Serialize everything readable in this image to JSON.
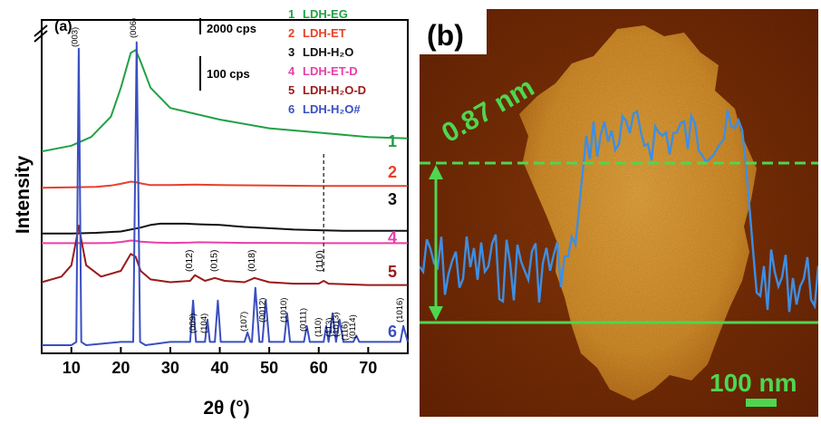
{
  "chart_data": [
    {
      "type": "line",
      "panel_label": "(a)",
      "ylabel": "Intensity",
      "xlabel": "2θ (°)",
      "xlim": [
        4,
        78
      ],
      "xticks": [
        10,
        20,
        30,
        40,
        50,
        60,
        70
      ],
      "grid": false,
      "legend_position": "top-right",
      "scale_bars": [
        "2000 cps",
        "100 cps"
      ],
      "legend": [
        {
          "num": "1",
          "label": "LDH-EG",
          "color": "#22a045"
        },
        {
          "num": "2",
          "label": "LDH-ET",
          "color": "#e8402a"
        },
        {
          "num": "3",
          "label": "LDH-H₂O",
          "color": "#111111"
        },
        {
          "num": "4",
          "label": "LDH-ET-D",
          "color": "#e83fa8"
        },
        {
          "num": "5",
          "label": "LDH-H₂O-D",
          "color": "#9a1a1a"
        },
        {
          "num": "6",
          "label": "LDH-H₂O#",
          "color": "#3a4fc0"
        }
      ],
      "series": [
        {
          "label_num": "1",
          "color": "#22a045",
          "x": [
            4,
            10,
            14,
            18,
            20,
            22,
            23,
            24,
            26,
            30,
            35,
            40,
            50,
            60,
            70,
            78
          ],
          "y": [
            0.18,
            0.22,
            0.28,
            0.42,
            0.62,
            0.86,
            0.88,
            0.8,
            0.62,
            0.48,
            0.44,
            0.4,
            0.34,
            0.31,
            0.28,
            0.27
          ]
        },
        {
          "label_num": "2",
          "color": "#e8402a",
          "x": [
            4,
            10,
            15,
            18,
            20,
            22,
            23,
            24,
            26,
            30,
            35,
            40,
            50,
            60,
            70,
            78
          ],
          "y": [
            0.1,
            0.11,
            0.12,
            0.15,
            0.19,
            0.24,
            0.23,
            0.2,
            0.16,
            0.16,
            0.17,
            0.16,
            0.15,
            0.14,
            0.14,
            0.14
          ]
        },
        {
          "label_num": "3",
          "color": "#111111",
          "x": [
            4,
            10,
            15,
            20,
            24,
            26,
            28,
            30,
            33,
            36,
            40,
            45,
            50,
            55,
            60,
            65,
            70,
            78
          ],
          "y": [
            0.06,
            0.06,
            0.07,
            0.09,
            0.15,
            0.19,
            0.21,
            0.21,
            0.21,
            0.2,
            0.19,
            0.16,
            0.14,
            0.12,
            0.11,
            0.1,
            0.1,
            0.1
          ]
        },
        {
          "label_num": "4",
          "color": "#e83fa8",
          "x": [
            4,
            10,
            15,
            18,
            20,
            22,
            23,
            24,
            27,
            30,
            34,
            36,
            40,
            45,
            50,
            60,
            70,
            78
          ],
          "y": [
            0.05,
            0.05,
            0.05,
            0.06,
            0.09,
            0.14,
            0.13,
            0.1,
            0.07,
            0.06,
            0.07,
            0.08,
            0.07,
            0.06,
            0.06,
            0.05,
            0.05,
            0.05
          ]
        },
        {
          "label_num": "5",
          "color": "#9a1a1a",
          "x": [
            4,
            8,
            10,
            11,
            11.5,
            12,
            13,
            16,
            20,
            22,
            23,
            24,
            26,
            30,
            34,
            35,
            37,
            39,
            41,
            45,
            47,
            50,
            55,
            60,
            61,
            62,
            70,
            78
          ],
          "y": [
            0.08,
            0.12,
            0.2,
            0.38,
            0.48,
            0.38,
            0.2,
            0.12,
            0.16,
            0.28,
            0.26,
            0.16,
            0.1,
            0.08,
            0.09,
            0.13,
            0.09,
            0.11,
            0.09,
            0.08,
            0.11,
            0.08,
            0.07,
            0.07,
            0.09,
            0.07,
            0.06,
            0.06
          ]
        },
        {
          "label_num": "6",
          "color": "#3a4fc0",
          "x": [
            4,
            10,
            11,
            11.5,
            12,
            13,
            20,
            22.5,
            23.2,
            23.9,
            25,
            30,
            34,
            34.6,
            35.2,
            36,
            37,
            37.5,
            38,
            39,
            39.6,
            40.2,
            42,
            45,
            45.6,
            46.2,
            46.5,
            47.2,
            48,
            48.6,
            49.3,
            50,
            52,
            53,
            53.6,
            54.2,
            56,
            57,
            57.6,
            58.2,
            60,
            61,
            61.5,
            62,
            62.8,
            63.5,
            64.2,
            65,
            66,
            67,
            67.6,
            68.2,
            70,
            72,
            75,
            76.5,
            77.1,
            78
          ],
          "y": [
            0.02,
            0.02,
            0.03,
            0.95,
            0.03,
            0.02,
            0.03,
            0.03,
            0.97,
            0.03,
            0.02,
            0.03,
            0.03,
            0.16,
            0.03,
            0.03,
            0.03,
            0.1,
            0.03,
            0.03,
            0.16,
            0.03,
            0.03,
            0.03,
            0.06,
            0.03,
            0.03,
            0.2,
            0.03,
            0.03,
            0.16,
            0.03,
            0.03,
            0.03,
            0.12,
            0.03,
            0.03,
            0.03,
            0.08,
            0.03,
            0.03,
            0.03,
            0.08,
            0.03,
            0.12,
            0.03,
            0.1,
            0.03,
            0.03,
            0.03,
            0.05,
            0.03,
            0.03,
            0.03,
            0.03,
            0.03,
            0.08,
            0.03
          ]
        }
      ],
      "peak_labels": [
        {
          "text": "(003)",
          "x": 11.4
        },
        {
          "text": "(006)",
          "x": 23.2
        },
        {
          "text": "(012)",
          "x": 34.6
        },
        {
          "text": "(015)",
          "x": 39.6
        },
        {
          "text": "(018)",
          "x": 47.2
        },
        {
          "text": "(110)",
          "x": 61.0
        },
        {
          "text": "(009)",
          "x": 35.2
        },
        {
          "text": "(104)",
          "x": 37.5
        },
        {
          "text": "(107)",
          "x": 45.6
        },
        {
          "text": "(0012)",
          "x": 49.3
        },
        {
          "text": "(1010)",
          "x": 53.6
        },
        {
          "text": "(0111)",
          "x": 57.6
        },
        {
          "text": "(110)",
          "x": 60.6
        },
        {
          "text": "(113)",
          "x": 62.8
        },
        {
          "text": "(1013)",
          "x": 64.2
        },
        {
          "text": "(116)",
          "x": 66.0
        },
        {
          "text": "(0114)",
          "x": 67.6
        },
        {
          "text": "(1016)",
          "x": 77.1
        }
      ]
    },
    {
      "type": "image",
      "panel_label": "(b)",
      "height_label": "0.87 nm",
      "scale_bar": "100 nm"
    }
  ]
}
